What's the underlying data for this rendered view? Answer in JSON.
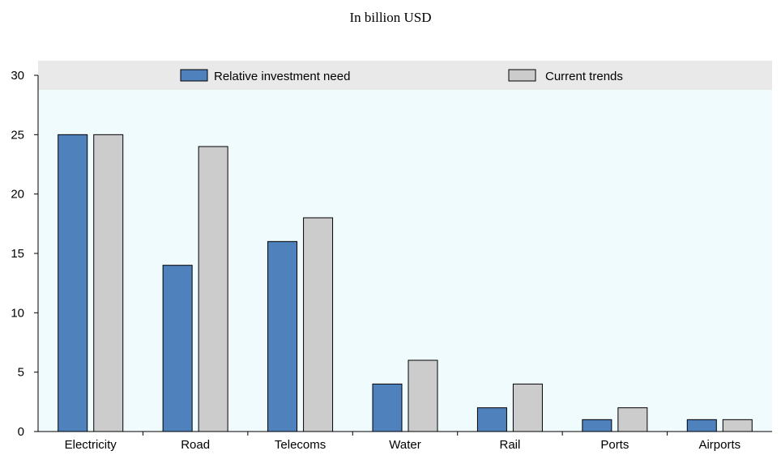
{
  "subtitle": "In billion USD",
  "chart_data": {
    "type": "bar",
    "title": "",
    "subtitle": "In billion USD",
    "xlabel": "",
    "ylabel": "",
    "categories": [
      "Electricity",
      "Road",
      "Telecoms",
      "Water",
      "Rail",
      "Ports",
      "Airports"
    ],
    "series": [
      {
        "name": "Relative investment need",
        "color": "#4f81bd",
        "values": [
          25,
          14,
          16,
          4,
          2,
          1,
          1
        ]
      },
      {
        "name": "Current trends",
        "color": "#cccccc",
        "values": [
          25,
          24,
          18,
          6,
          4,
          2,
          1
        ]
      }
    ],
    "ylim": [
      0,
      30
    ],
    "yticks": [
      0,
      5,
      10,
      15,
      20,
      25,
      30
    ],
    "grid": false,
    "legend": "top",
    "colors": {
      "plot_background": "#f0fbfe",
      "legend_band": "#e9e9e9"
    }
  }
}
